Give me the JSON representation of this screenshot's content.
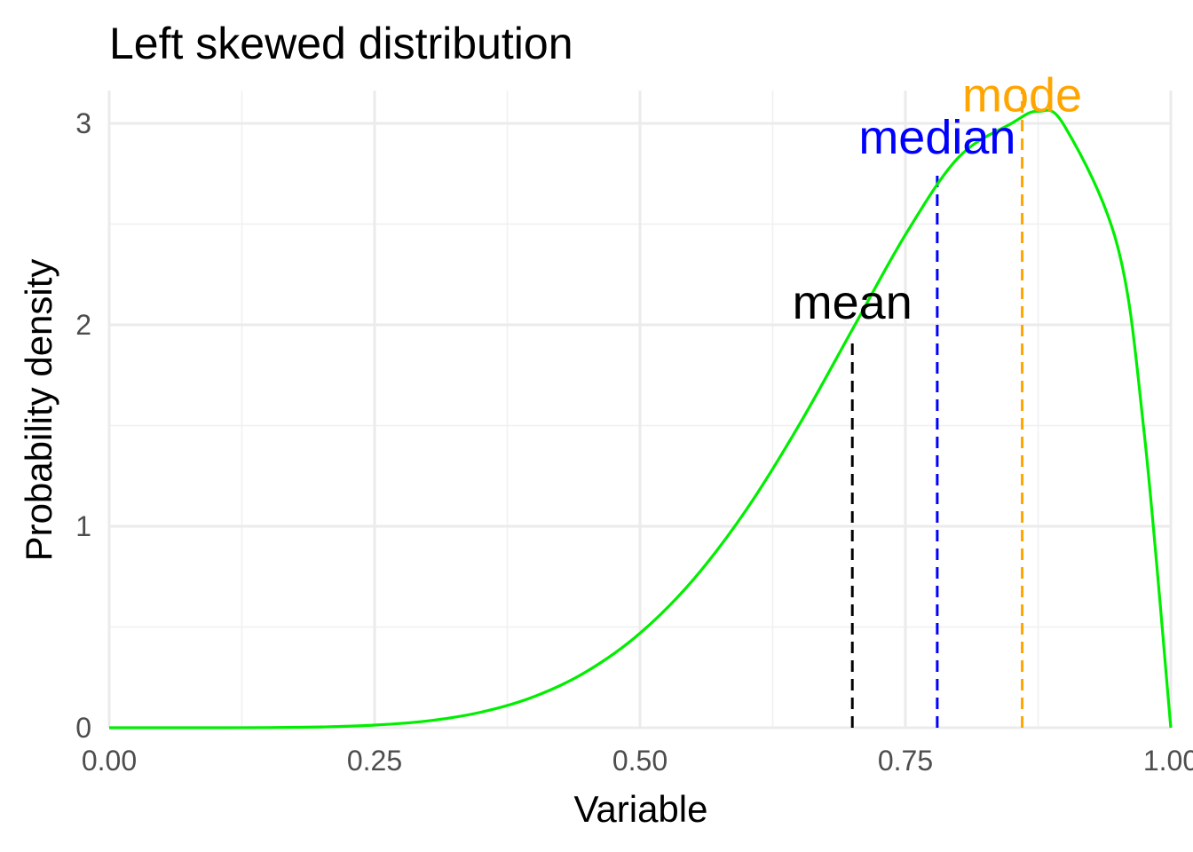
{
  "chart_data": {
    "type": "line",
    "title": "Left skewed distribution",
    "xlabel": "Variable",
    "ylabel": "Probability density",
    "xlim": [
      0,
      1
    ],
    "ylim": [
      0,
      3.16
    ],
    "grid": true,
    "x_ticks": [
      0,
      0.25,
      0.5,
      0.75,
      1
    ],
    "x_tick_labels": [
      "0.00",
      "0.25",
      "0.50",
      "0.75",
      "1.00"
    ],
    "y_ticks": [
      0,
      1,
      2,
      3
    ],
    "y_tick_labels": [
      "0",
      "1",
      "2",
      "3"
    ],
    "series": [
      {
        "color": "#00ee00",
        "x": [
          0,
          0.05,
          0.1,
          0.15,
          0.2,
          0.25,
          0.3,
          0.35,
          0.4,
          0.45,
          0.5,
          0.55,
          0.6,
          0.65,
          0.7,
          0.75,
          0.8,
          0.85,
          0.875,
          0.9,
          0.95,
          0.975,
          1.0
        ],
        "y": [
          0,
          0,
          0,
          0.001,
          0.004,
          0.013,
          0.034,
          0.077,
          0.154,
          0.28,
          0.469,
          0.734,
          1.081,
          1.504,
          1.976,
          2.447,
          2.831,
          3.0,
          3.06,
          2.986,
          2.387,
          1.46,
          0
        ]
      }
    ],
    "annotations": [
      {
        "label": "mean",
        "x": 0.7,
        "y_top": 1.94,
        "label_y": 2.03,
        "color": "#000000"
      },
      {
        "label": "median",
        "x": 0.78,
        "y_top": 2.76,
        "label_y": 2.85,
        "color": "#0000ff"
      },
      {
        "label": "mode",
        "x": 0.86,
        "y_top": 3.16,
        "label_y": 3.06,
        "color": "#ffa500"
      }
    ]
  }
}
